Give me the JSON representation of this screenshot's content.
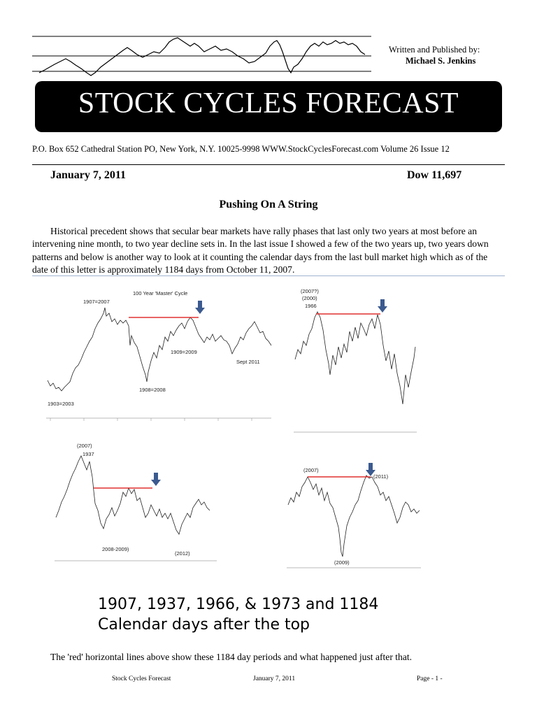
{
  "header": {
    "published_label": "Written and Published by:",
    "author": "Michael S. Jenkins",
    "title": "STOCK CYCLES FORECAST",
    "address": "P.O. Box 652 Cathedral Station PO, New York, N.Y. 10025-9998 WWW.StockCyclesForecast.com Volume 26  Issue  12"
  },
  "issue": {
    "date": "January 7, 2011",
    "dow": "Dow  11,697"
  },
  "article": {
    "title": "Pushing On A String",
    "intro": "Historical precedent shows that secular bear markets have rally phases that last only two years at most before an intervening nine month, to two year decline sets in. In the last issue I showed a few of the two years up, two years down patterns and below is another way to look at it counting the calendar days from the last bull market high which as of the date of this letter is approximately 1184 days from October 11, 2007."
  },
  "charts": {
    "c1": {
      "title": "100 Year 'Master' Cycle",
      "labels": [
        "1907=2007",
        "1903=2003",
        "1908=2008",
        "1909=2009",
        "Sept 2011"
      ]
    },
    "c2": {
      "labels": [
        "(2007?)",
        "(2000)",
        "1966"
      ]
    },
    "c3": {
      "labels": [
        "(2007)",
        "1937",
        "2008-2009)",
        "(2012)"
      ]
    },
    "c4": {
      "labels": [
        "(2007)",
        "(2011)",
        "(2009)"
      ]
    }
  },
  "caption": {
    "line1": "1907, 1937, 1966, & 1973 and 1184",
    "line2": "Calendar days after the top"
  },
  "footnote": "The 'red' horizontal lines above show these 1184 day periods and what happened just after that.",
  "footer": {
    "left": "Stock Cycles Forecast",
    "center": "January 7, 2011",
    "right": "Page - 1 -"
  },
  "colors": {
    "marker_line": "#e03030",
    "arrow": "#3b5a8f",
    "banner": "#000000"
  }
}
